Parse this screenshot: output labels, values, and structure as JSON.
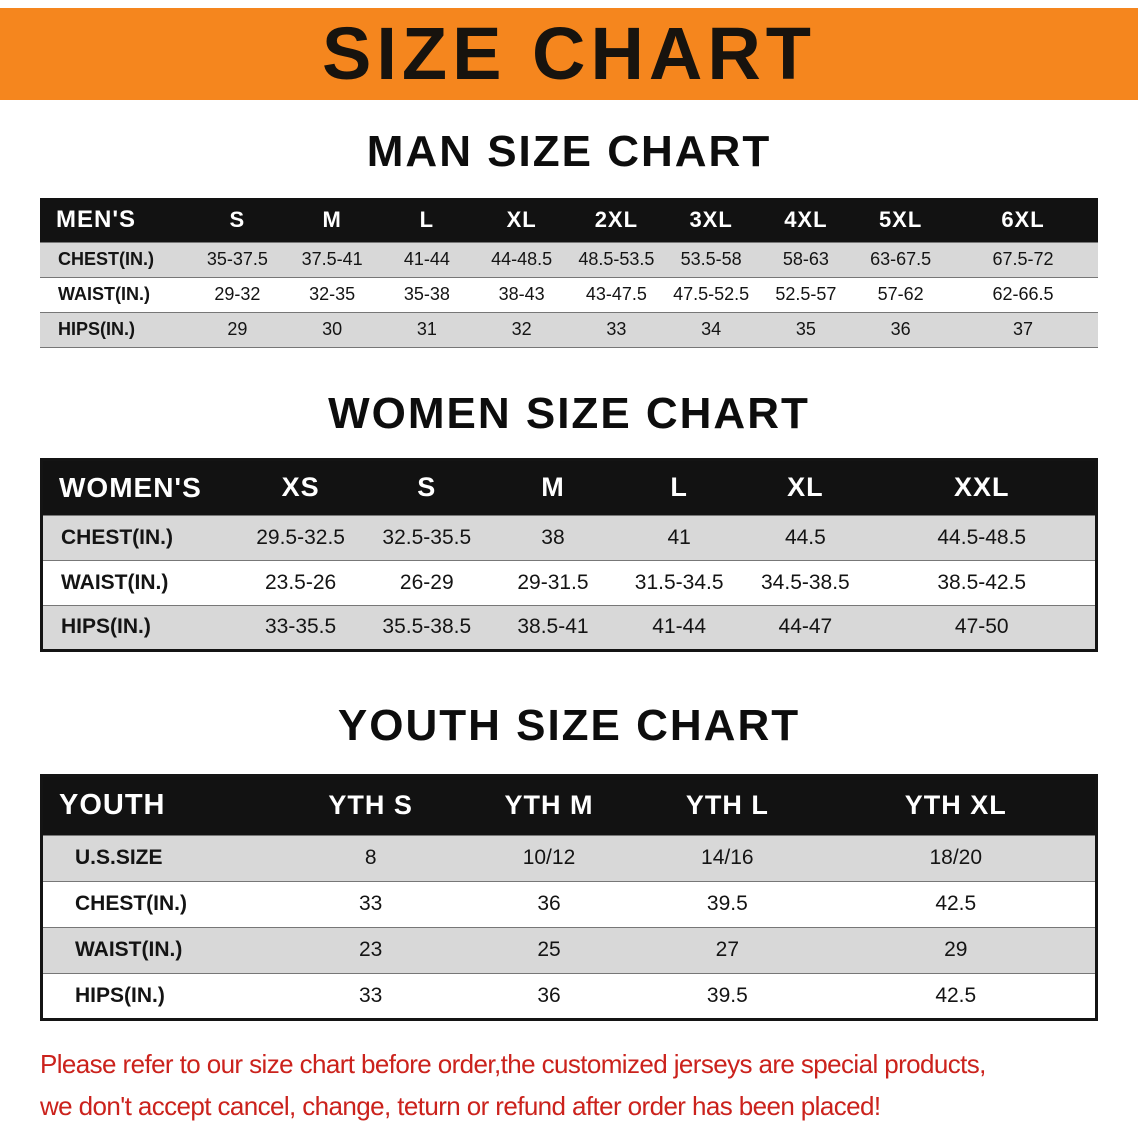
{
  "banner": {
    "title": "SIZE CHART",
    "bg_color": "#F5861E",
    "text_color": "#17130E"
  },
  "chart_data": [
    {
      "type": "table",
      "title": "MAN SIZE CHART",
      "columns": [
        "MEN'S",
        "S",
        "M",
        "L",
        "XL",
        "2XL",
        "3XL",
        "4XL",
        "5XL",
        "6XL"
      ],
      "rows": [
        [
          "CHEST(IN.)",
          "35-37.5",
          "37.5-41",
          "41-44",
          "44-48.5",
          "48.5-53.5",
          "53.5-58",
          "58-63",
          "63-67.5",
          "67.5-72"
        ],
        [
          "WAIST(IN.)",
          "29-32",
          "32-35",
          "35-38",
          "38-43",
          "43-47.5",
          "47.5-52.5",
          "52.5-57",
          "57-62",
          "62-66.5"
        ],
        [
          "HIPS(IN.)",
          "29",
          "30",
          "31",
          "32",
          "33",
          "34",
          "35",
          "36",
          "37"
        ]
      ]
    },
    {
      "type": "table",
      "title": "WOMEN SIZE CHART",
      "columns": [
        "WOMEN'S",
        "XS",
        "S",
        "M",
        "L",
        "XL",
        "XXL"
      ],
      "rows": [
        [
          "CHEST(IN.)",
          "29.5-32.5",
          "32.5-35.5",
          "38",
          "41",
          "44.5",
          "44.5-48.5"
        ],
        [
          "WAIST(IN.)",
          "23.5-26",
          "26-29",
          "29-31.5",
          "31.5-34.5",
          "34.5-38.5",
          "38.5-42.5"
        ],
        [
          "HIPS(IN.)",
          "33-35.5",
          "35.5-38.5",
          "38.5-41",
          "41-44",
          "44-47",
          "47-50"
        ]
      ]
    },
    {
      "type": "table",
      "title": "YOUTH SIZE CHART",
      "columns": [
        "YOUTH",
        "YTH S",
        "YTH M",
        "YTH L",
        "YTH XL"
      ],
      "rows": [
        [
          "U.S.SIZE",
          "8",
          "10/12",
          "14/16",
          "18/20"
        ],
        [
          "CHEST(IN.)",
          "33",
          "36",
          "39.5",
          "42.5"
        ],
        [
          "WAIST(IN.)",
          "23",
          "25",
          "27",
          "29"
        ],
        [
          "HIPS(IN.)",
          "33",
          "36",
          "39.5",
          "42.5"
        ]
      ]
    }
  ],
  "disclaimer": {
    "line1": "Please refer to our size chart before order,the customized jerseys are special products,",
    "line2": "we don't accept cancel, change, teturn or refund after order has been placed!",
    "text_color": "#CB221C"
  }
}
